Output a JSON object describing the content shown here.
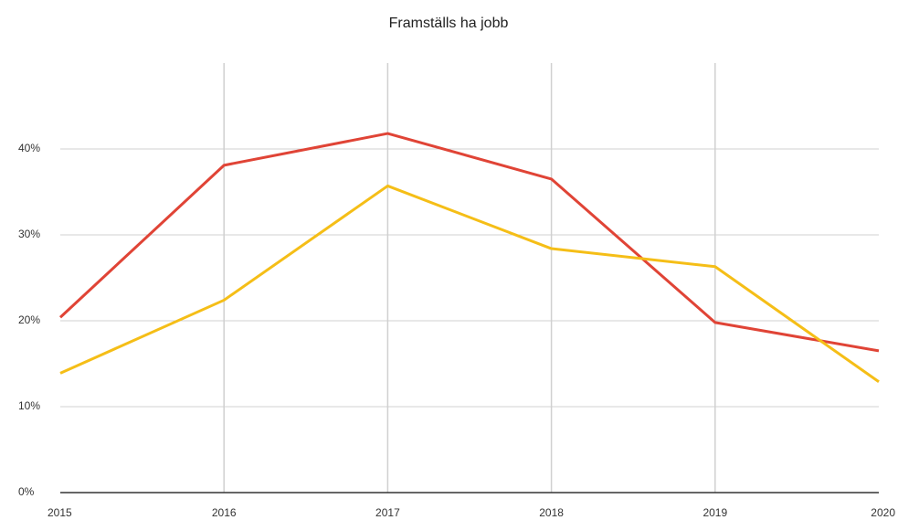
{
  "chart_data": {
    "type": "line",
    "title": "Framställs ha jobb",
    "categories": [
      "2015",
      "2016",
      "2017",
      "2018",
      "2019",
      "2020"
    ],
    "series": [
      {
        "color": "#e04436",
        "values": [
          20.4,
          38.1,
          41.8,
          36.5,
          19.8,
          16.5
        ]
      },
      {
        "color": "#f5be17",
        "values": [
          13.9,
          22.4,
          35.7,
          28.4,
          26.3,
          12.9
        ]
      }
    ],
    "ylim": [
      0,
      50
    ],
    "yticks": [
      {
        "value": 0,
        "label": "0%"
      },
      {
        "value": 10,
        "label": "10%"
      },
      {
        "value": 20,
        "label": "20%"
      },
      {
        "value": 30,
        "label": "30%"
      },
      {
        "value": 40,
        "label": "40%"
      }
    ],
    "grid": true
  }
}
